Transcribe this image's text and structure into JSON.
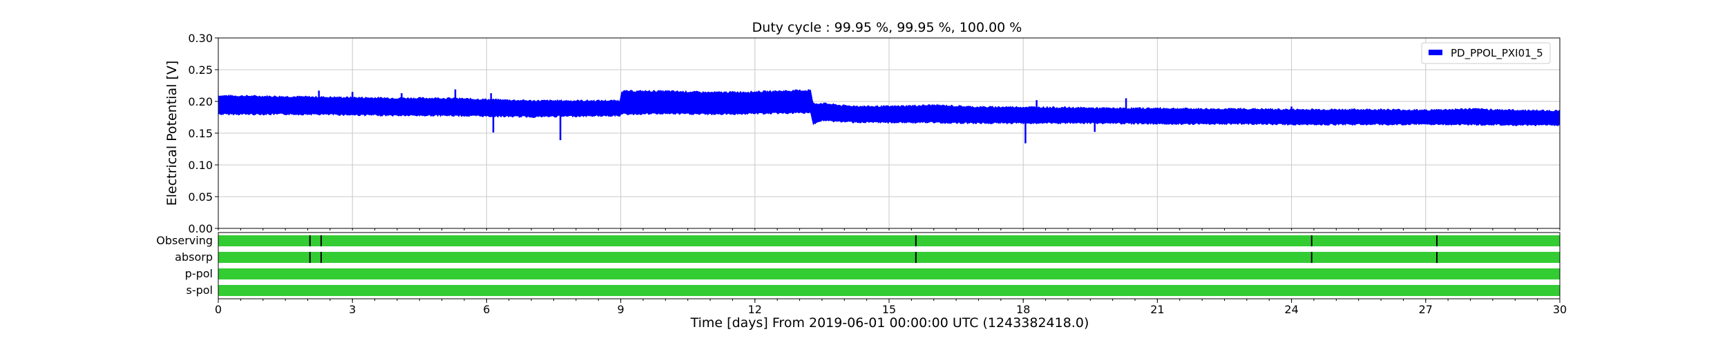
{
  "chart_data": {
    "type": "line",
    "title": "Duty cycle : 99.95 %, 99.95 %, 100.00 %",
    "xlabel": "Time [days] From 2019-06-01 00:00:00 UTC (1243382418.0)",
    "ylabel": "Electrical Potential [V]",
    "xlim": [
      0,
      30
    ],
    "ylim": [
      0,
      0.3
    ],
    "x_ticks": [
      0,
      3,
      6,
      9,
      12,
      15,
      18,
      21,
      24,
      27,
      30
    ],
    "x_tick_labels": [
      "0",
      "3",
      "6",
      "9",
      "12",
      "15",
      "18",
      "21",
      "24",
      "27",
      "30"
    ],
    "y_ticks": [
      0,
      0.05,
      0.1,
      0.15,
      0.2,
      0.25,
      0.3
    ],
    "y_tick_labels": [
      "0.00",
      "0.05",
      "0.10",
      "0.15",
      "0.20",
      "0.25",
      "0.30"
    ],
    "grid": true,
    "legend_position": "top-right",
    "series": [
      {
        "name": "PD_PPOL_PXI01_5",
        "color": "#0000ff",
        "band": {
          "x": [
            0,
            1,
            2,
            3,
            4,
            5,
            6,
            7,
            8,
            8.98,
            9.02,
            10,
            11,
            12,
            13,
            13.25,
            13.3,
            13.5,
            14,
            14.5,
            15,
            16,
            17,
            18,
            19,
            20,
            21,
            22,
            23,
            24,
            25,
            26,
            27,
            28,
            29,
            30
          ],
          "lower": [
            0.18,
            0.18,
            0.18,
            0.179,
            0.178,
            0.178,
            0.177,
            0.176,
            0.177,
            0.178,
            0.18,
            0.181,
            0.18,
            0.181,
            0.182,
            0.182,
            0.165,
            0.17,
            0.168,
            0.167,
            0.167,
            0.167,
            0.166,
            0.166,
            0.166,
            0.166,
            0.165,
            0.165,
            0.165,
            0.164,
            0.164,
            0.164,
            0.164,
            0.164,
            0.163,
            0.163
          ],
          "upper": [
            0.209,
            0.208,
            0.207,
            0.206,
            0.205,
            0.205,
            0.203,
            0.201,
            0.201,
            0.201,
            0.216,
            0.216,
            0.214,
            0.215,
            0.217,
            0.217,
            0.196,
            0.197,
            0.193,
            0.192,
            0.192,
            0.194,
            0.191,
            0.191,
            0.19,
            0.189,
            0.189,
            0.188,
            0.188,
            0.187,
            0.187,
            0.187,
            0.186,
            0.188,
            0.186,
            0.185
          ]
        },
        "spikes": [
          {
            "x": 2.25,
            "y": 0.217
          },
          {
            "x": 3.0,
            "y": 0.215
          },
          {
            "x": 4.1,
            "y": 0.213
          },
          {
            "x": 5.3,
            "y": 0.219
          },
          {
            "x": 6.1,
            "y": 0.213
          },
          {
            "x": 6.15,
            "y": 0.151
          },
          {
            "x": 7.65,
            "y": 0.139
          },
          {
            "x": 13.2,
            "y": 0.219
          },
          {
            "x": 18.05,
            "y": 0.134
          },
          {
            "x": 18.3,
            "y": 0.202
          },
          {
            "x": 19.6,
            "y": 0.152
          },
          {
            "x": 20.3,
            "y": 0.205
          },
          {
            "x": 24.0,
            "y": 0.192
          }
        ]
      }
    ],
    "segments_panel": {
      "color": "#33cc33",
      "gap_color": "#000000",
      "rows": [
        {
          "label": "Observing",
          "gaps": [
            2.05,
            2.3,
            15.6,
            24.45,
            27.25
          ]
        },
        {
          "label": "absorp",
          "gaps": [
            2.05,
            2.3,
            15.6,
            24.45,
            27.25
          ]
        },
        {
          "label": "p-pol",
          "gaps": []
        },
        {
          "label": "s-pol",
          "gaps": []
        }
      ]
    }
  }
}
